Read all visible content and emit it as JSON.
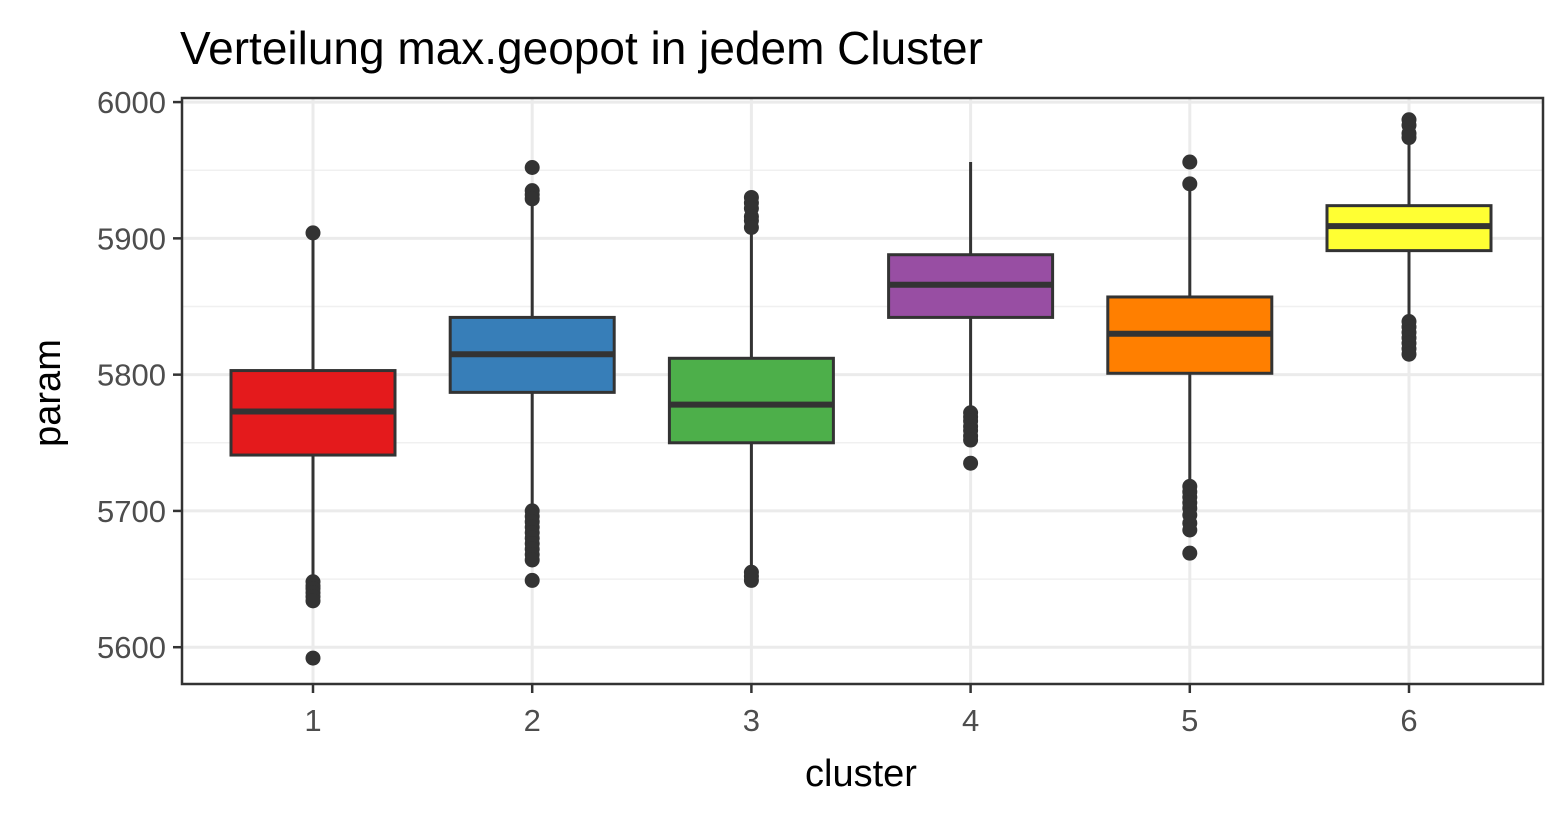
{
  "chart_data": {
    "type": "boxplot",
    "title": "Verteilung max.geopot in jedem Cluster",
    "xlabel": "cluster",
    "ylabel": "param",
    "ylim": [
      5573,
      6003
    ],
    "yticks": [
      "5600",
      "5700",
      "5800",
      "5900",
      "6000"
    ],
    "grid": true,
    "legend": "none",
    "categories": [
      "1",
      "2",
      "3",
      "4",
      "5",
      "6"
    ],
    "boxes": [
      {
        "cluster": "1",
        "color": "#E41A1C",
        "q1": 5741,
        "median": 5773,
        "q3": 5803,
        "whisker_low": 5650,
        "whisker_high": 5900,
        "outliers": [
          5904,
          5648,
          5645,
          5643,
          5640,
          5637,
          5634,
          5592
        ]
      },
      {
        "cluster": "2",
        "color": "#377EB8",
        "q1": 5787,
        "median": 5815,
        "q3": 5842,
        "whisker_low": 5703,
        "whisker_high": 5925,
        "outliers": [
          5952,
          5935,
          5932,
          5929,
          5700,
          5696,
          5692,
          5688,
          5684,
          5680,
          5676,
          5672,
          5668,
          5664,
          5649
        ]
      },
      {
        "cluster": "3",
        "color": "#4DAF4A",
        "q1": 5750,
        "median": 5778,
        "q3": 5812,
        "whisker_low": 5658,
        "whisker_high": 5905,
        "outliers": [
          5930,
          5926,
          5922,
          5916,
          5913,
          5908,
          5655,
          5652,
          5649
        ]
      },
      {
        "cluster": "4",
        "color": "#984EA3",
        "q1": 5842,
        "median": 5866,
        "q3": 5888,
        "whisker_low": 5775,
        "whisker_high": 5956,
        "outliers": [
          5772,
          5769,
          5766,
          5762,
          5759,
          5755,
          5752,
          5735
        ]
      },
      {
        "cluster": "5",
        "color": "#FF7F00",
        "q1": 5801,
        "median": 5830,
        "q3": 5857,
        "whisker_low": 5722,
        "whisker_high": 5935,
        "outliers": [
          5956,
          5940,
          5718,
          5714,
          5710,
          5706,
          5702,
          5697,
          5691,
          5686,
          5669
        ]
      },
      {
        "cluster": "6",
        "color": "#FFFF33",
        "q1": 5891,
        "median": 5909,
        "q3": 5924,
        "whisker_low": 5843,
        "whisker_high": 5972,
        "outliers": [
          5987,
          5983,
          5977,
          5974,
          5839,
          5835,
          5831,
          5827,
          5823,
          5819,
          5815
        ]
      }
    ]
  }
}
